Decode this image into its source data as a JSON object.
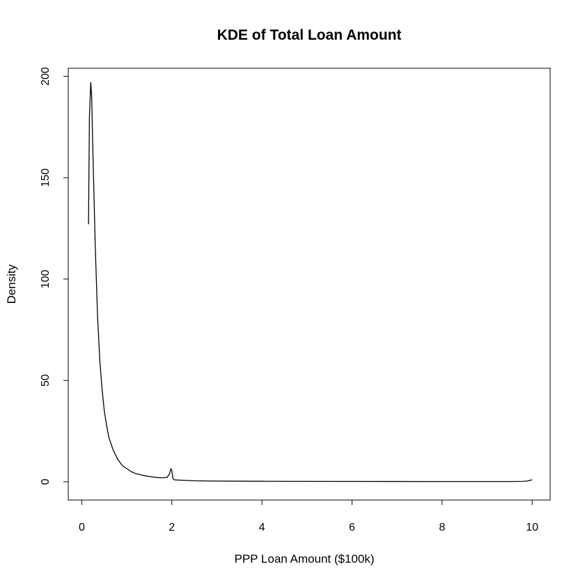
{
  "chart_data": {
    "type": "line",
    "title": "KDE of Total Loan Amount",
    "xlabel": "PPP Loan Amount ($100k)",
    "ylabel": "Density",
    "xlim": [
      -0.3,
      10.4
    ],
    "ylim": [
      -9,
      204
    ],
    "x_ticks": [
      0,
      2,
      4,
      6,
      8,
      10
    ],
    "y_ticks": [
      0,
      50,
      100,
      150,
      200
    ],
    "grid": false,
    "colors": {
      "line": "#000000",
      "frame": "#000000",
      "background": "#ffffff"
    },
    "series": [
      {
        "name": "",
        "x": [
          0.15,
          0.17,
          0.2,
          0.22,
          0.25,
          0.3,
          0.35,
          0.4,
          0.45,
          0.5,
          0.55,
          0.6,
          0.7,
          0.8,
          0.9,
          1.0,
          1.1,
          1.2,
          1.3,
          1.4,
          1.5,
          1.6,
          1.7,
          1.8,
          1.9,
          1.95,
          1.98,
          2.0,
          2.02,
          2.04,
          2.06,
          2.1,
          2.3,
          2.5,
          2.8,
          3.0,
          3.5,
          4.0,
          5.0,
          6.0,
          7.0,
          8.0,
          9.0,
          9.5,
          9.8,
          9.9,
          10.0
        ],
        "y": [
          127,
          180,
          197,
          190,
          160,
          116,
          82,
          60,
          46,
          35,
          28,
          22,
          15.5,
          11,
          8,
          6.5,
          5,
          4,
          3.5,
          3,
          2.6,
          2.3,
          2.1,
          2.0,
          2.3,
          4,
          6.5,
          5.5,
          2,
          1.1,
          1.0,
          0.9,
          0.7,
          0.5,
          0.4,
          0.35,
          0.3,
          0.25,
          0.2,
          0.15,
          0.12,
          0.1,
          0.1,
          0.1,
          0.2,
          0.4,
          1.0
        ]
      }
    ]
  }
}
